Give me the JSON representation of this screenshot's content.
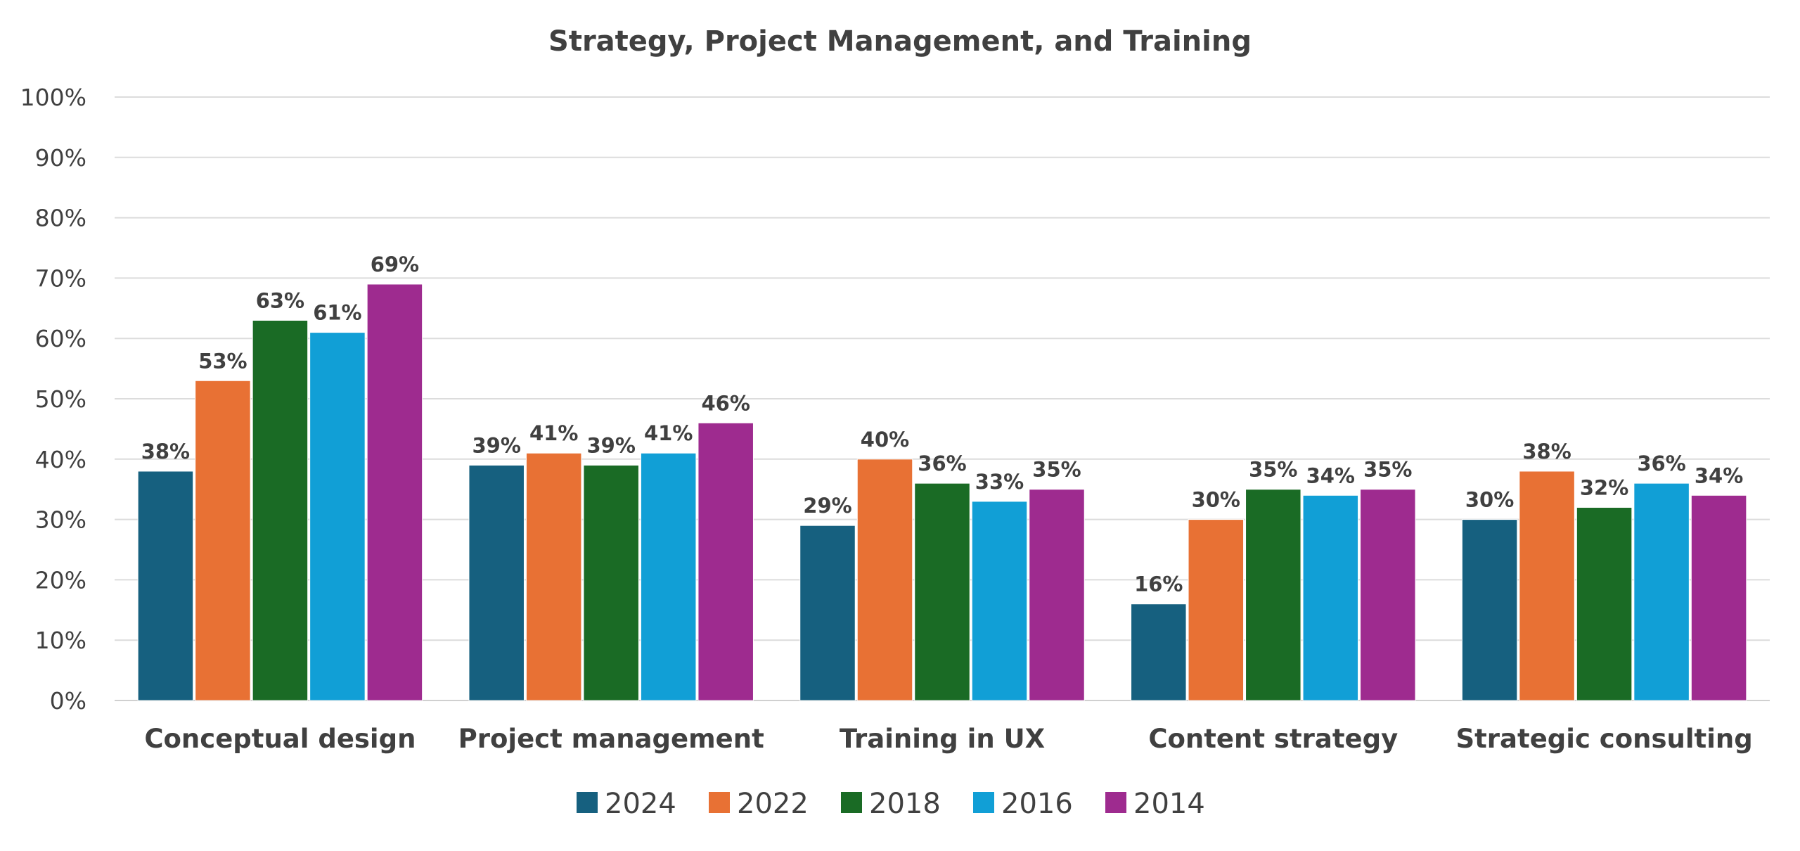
{
  "chart_data": {
    "type": "bar",
    "title": "Strategy, Project Management, and Training",
    "xlabel": "",
    "ylabel": "",
    "ylim": [
      0,
      100
    ],
    "y_ticks": [
      "0%",
      "10%",
      "20%",
      "30%",
      "40%",
      "50%",
      "60%",
      "70%",
      "80%",
      "90%",
      "100%"
    ],
    "grid": true,
    "legend_position": "bottom",
    "categories": [
      "Conceptual design",
      "Project management",
      "Training in UX",
      "Content strategy",
      "Strategic consulting"
    ],
    "series": [
      {
        "name": "2024",
        "color": "#16607f",
        "values": [
          38,
          39,
          29,
          16,
          30
        ]
      },
      {
        "name": "2022",
        "color": "#e87134",
        "values": [
          53,
          41,
          40,
          30,
          38
        ]
      },
      {
        "name": "2018",
        "color": "#1a6b25",
        "values": [
          63,
          39,
          36,
          35,
          32
        ]
      },
      {
        "name": "2016",
        "color": "#119fd6",
        "values": [
          61,
          41,
          33,
          34,
          36
        ]
      },
      {
        "name": "2014",
        "color": "#9e2b8f",
        "values": [
          69,
          46,
          35,
          35,
          34
        ]
      }
    ],
    "value_format": "{v}%"
  }
}
